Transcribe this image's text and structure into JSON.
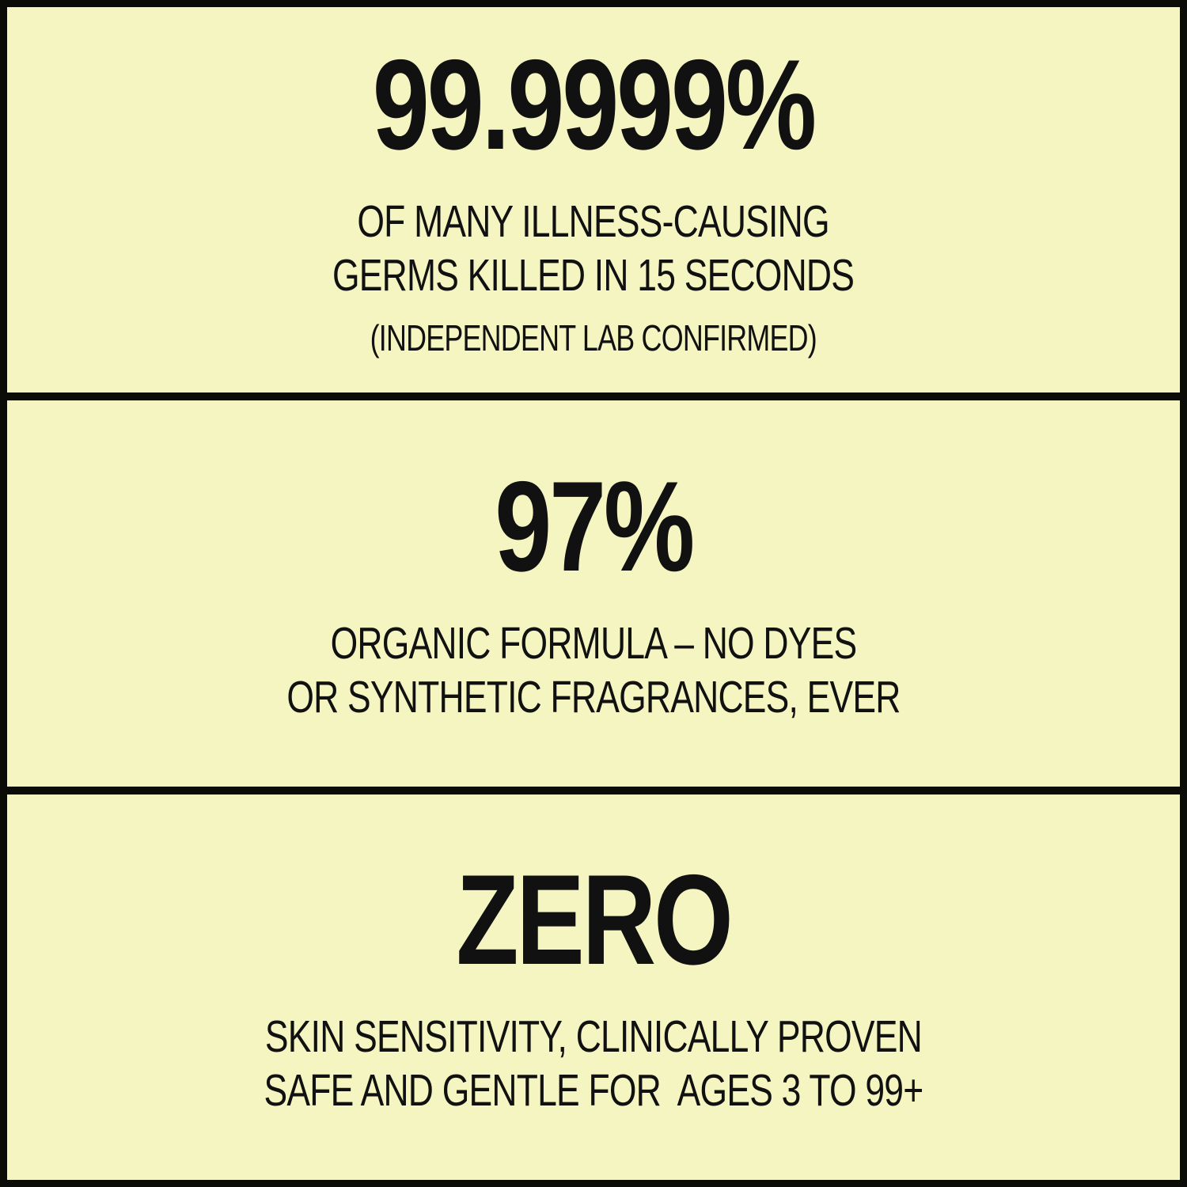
{
  "poster": {
    "background_color": "#f5f5c2",
    "frame_color": "#0b0b07",
    "text_color": "#111111"
  },
  "panels": [
    {
      "stat": "99.9999%",
      "lines": [
        "OF MANY ILLNESS-CAUSING",
        "GERMS KILLED IN 15 SECONDS"
      ],
      "note": "(INDEPENDENT LAB CONFIRMED)"
    },
    {
      "stat": "97%",
      "lines": [
        "ORGANIC FORMULA – NO DYES",
        "OR SYNTHETIC FRAGRANCES, EVER"
      ]
    },
    {
      "stat": "ZERO",
      "lines": [
        "SKIN SENSITIVITY, CLINICALLY PROVEN",
        "SAFE AND GENTLE FOR  AGES 3 TO 99+"
      ]
    }
  ]
}
